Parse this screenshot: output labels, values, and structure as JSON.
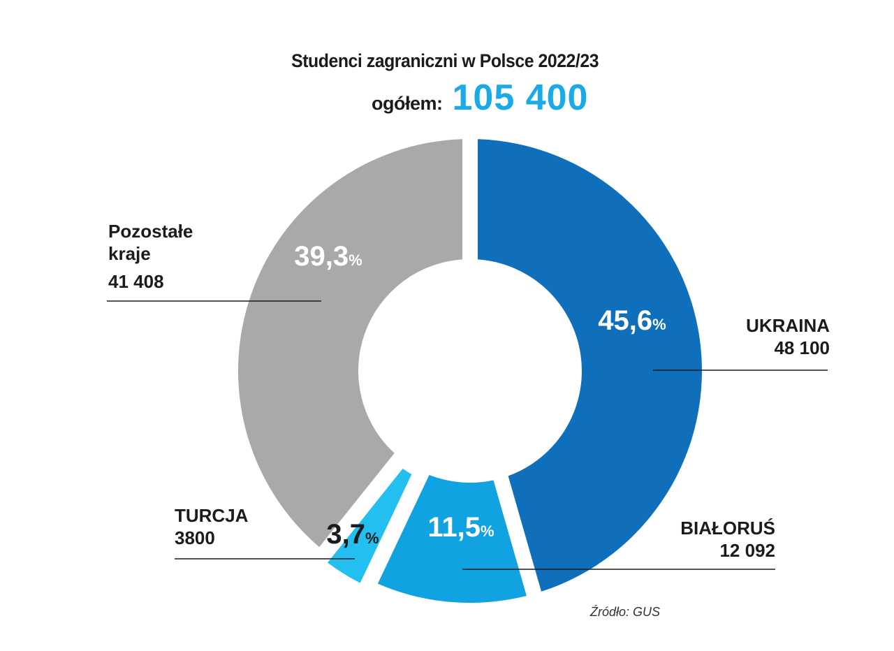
{
  "chart_data": {
    "type": "pie",
    "title": "Studenci zagraniczni w Polsce 2022/23",
    "total_label": "ogółem:",
    "total_value": "105 400",
    "source": "Źródło: GUS",
    "slices": [
      {
        "name": "UKRAINA",
        "value_text": "48 100",
        "value": 48100,
        "percent": 45.6,
        "percent_text": "45,6",
        "color": "#0f6fbb"
      },
      {
        "name": "BIAŁORUŚ",
        "value_text": "12 092",
        "value": 12092,
        "percent": 11.5,
        "percent_text": "11,5",
        "color": "#11a2e2"
      },
      {
        "name": "TURCJA",
        "value_text": "3800",
        "value": 3800,
        "percent": 3.7,
        "percent_text": "3,7",
        "color": "#22bff0"
      },
      {
        "name_lines": [
          "Pozostałe",
          "kraje"
        ],
        "value_text": "41 408",
        "value": 41408,
        "percent": 39.3,
        "percent_text": "39,3",
        "color": "#a9a9a9"
      }
    ],
    "percent_sign": "%"
  }
}
